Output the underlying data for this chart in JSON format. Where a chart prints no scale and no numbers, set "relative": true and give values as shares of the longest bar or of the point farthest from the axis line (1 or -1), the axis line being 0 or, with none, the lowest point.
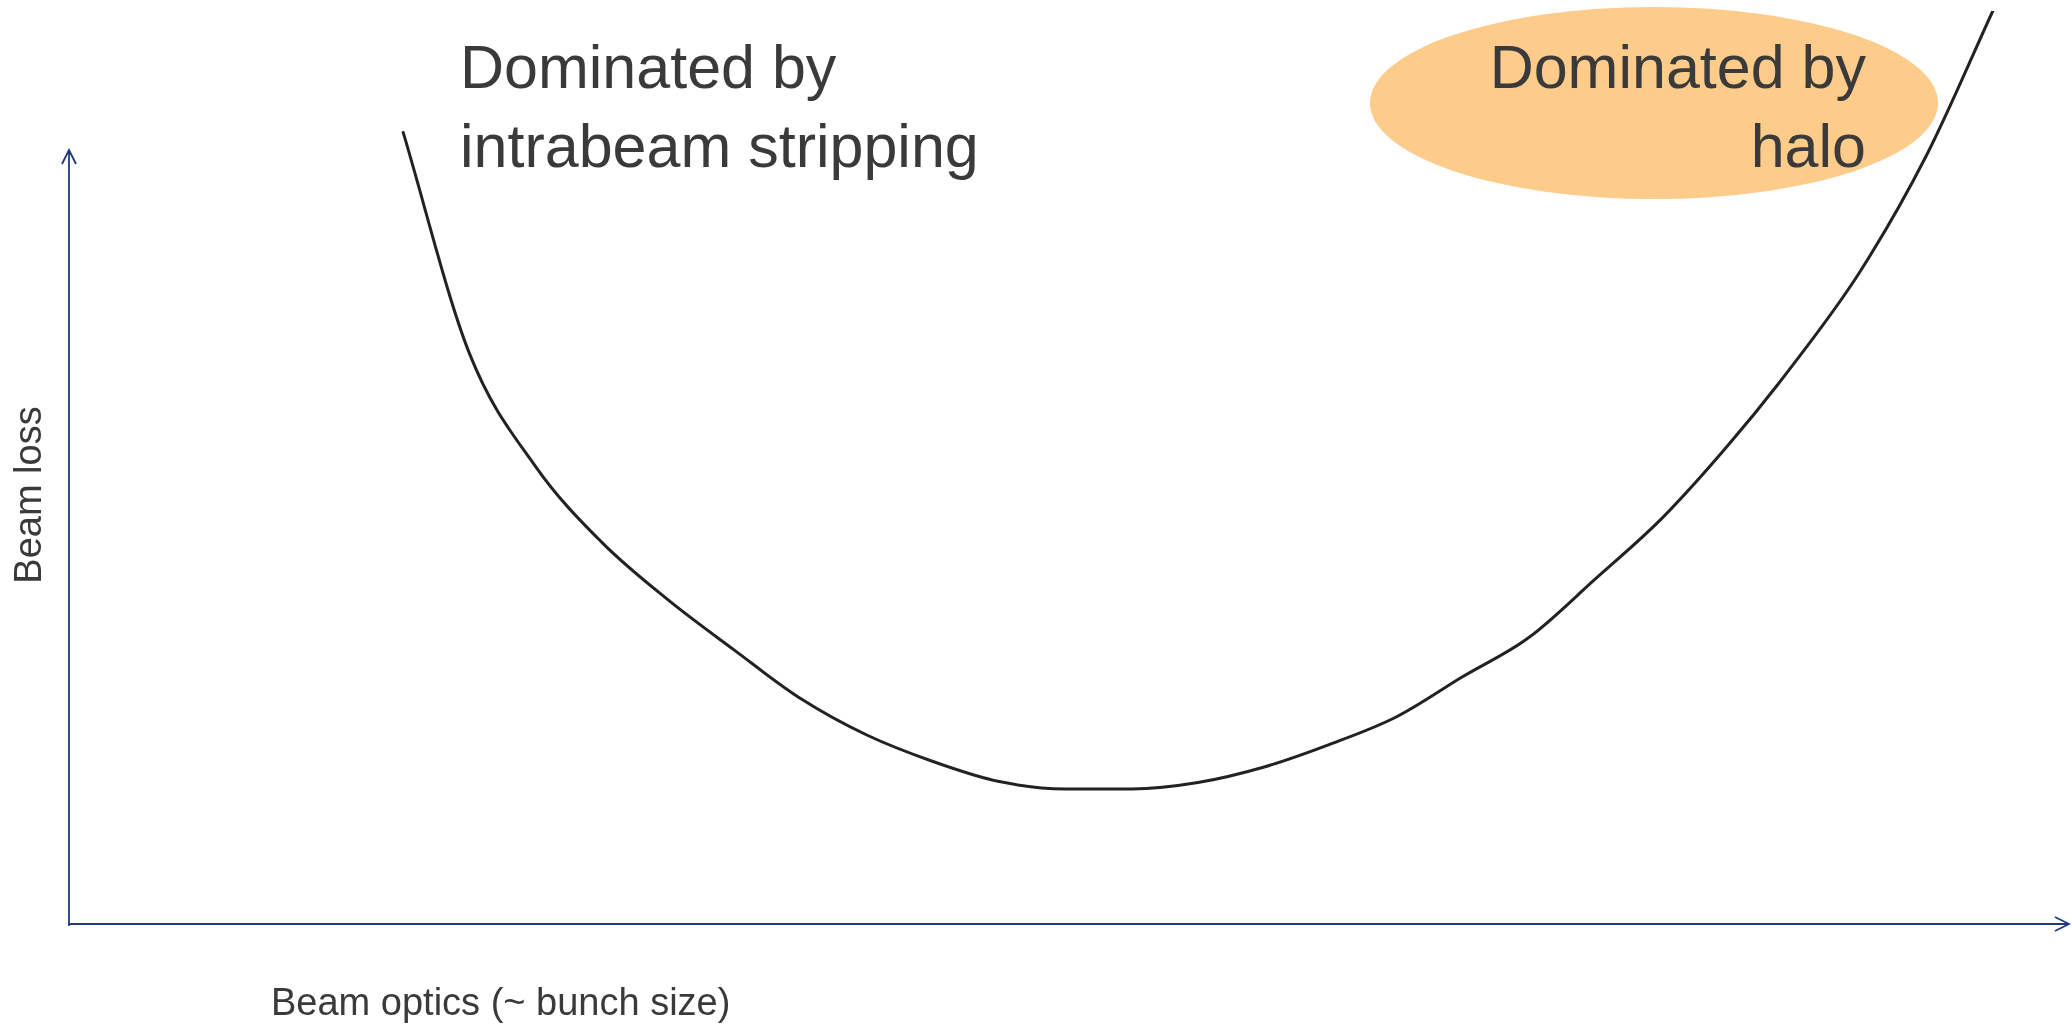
{
  "chart_data": {
    "type": "line",
    "relative": true,
    "xlabel": "Beam optics  (~ bunch size)",
    "ylabel": "Beam loss",
    "annotations": [
      "Dominated by intrabeam stripping",
      "Dominated by halo"
    ],
    "categories": [
      null,
      null,
      null,
      null,
      null,
      null,
      null,
      null,
      null,
      null,
      null,
      null,
      null,
      null,
      null,
      null,
      null,
      null,
      null,
      null,
      null,
      null,
      null,
      null,
      null,
      null,
      null,
      null,
      null,
      null,
      null
    ],
    "values": [
      null,
      null,
      null,
      null,
      null,
      0.867,
      0.625,
      0.501,
      0.418,
      0.355,
      0.3,
      0.247,
      0.207,
      0.178,
      0.156,
      0.148,
      0.148,
      0.155,
      0.172,
      0.197,
      0.227,
      0.271,
      0.314,
      0.378,
      0.444,
      0.524,
      0.614,
      0.715,
      0.842,
      1.0,
      null
    ],
    "color": "#222222"
  }
}
